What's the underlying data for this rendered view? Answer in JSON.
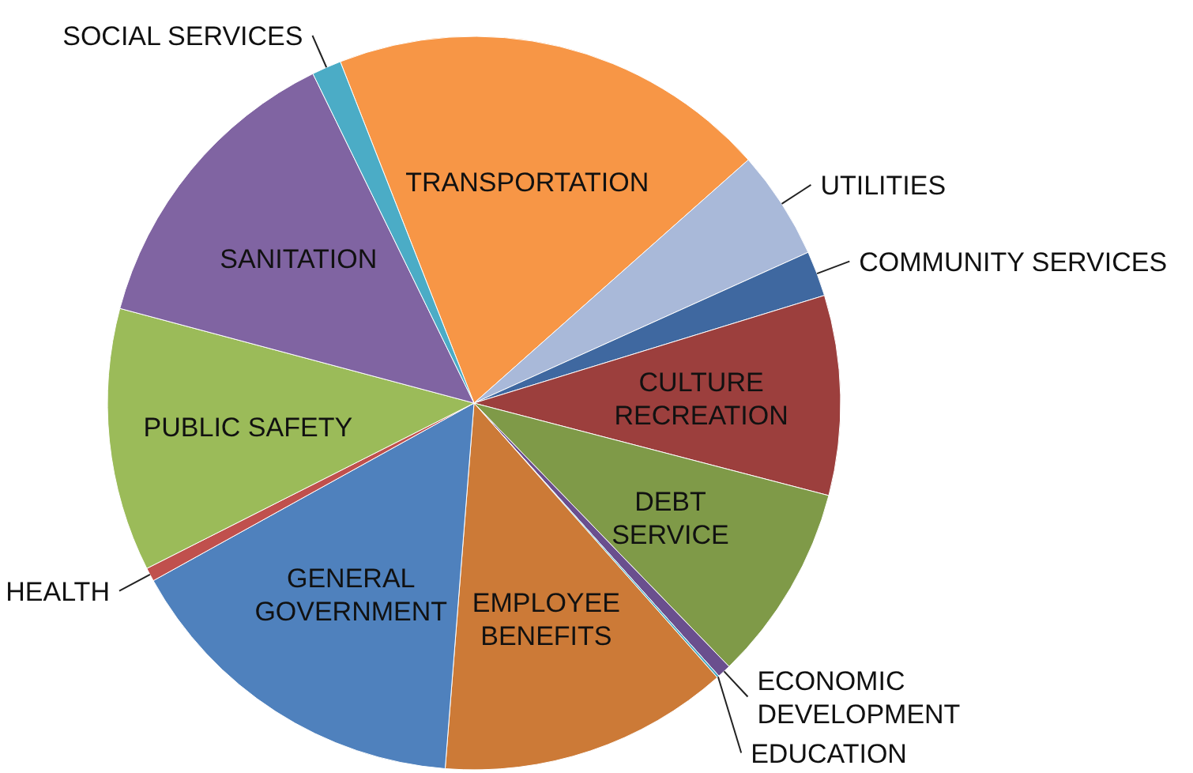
{
  "chart_data": {
    "type": "pie",
    "categories": [
      "TRANSPORTATION",
      "UTILITIES",
      "COMMUNITY SERVICES",
      "CULTURE\nRECREATION",
      "DEBT\nSERVICE",
      "ECONOMIC\nDEVELOPMENT",
      "EDUCATION",
      "EMPLOYEE\nBENEFITS",
      "GENERAL\nGOVERNMENT",
      "HEALTH",
      "PUBLIC SAFETY",
      "SANITATION",
      "SOCIAL SERVICES"
    ],
    "values": [
      19.4,
      4.8,
      2.0,
      8.8,
      8.7,
      0.6,
      0.1,
      12.8,
      15.7,
      0.6,
      11.6,
      13.6,
      1.3
    ],
    "colors": [
      "#f79646",
      "#a9b9d9",
      "#3f68a0",
      "#9c3f3d",
      "#7f9a48",
      "#6a4f8e",
      "#4bacc6",
      "#cc7a37",
      "#4f81bd",
      "#c0504d",
      "#9bbb59",
      "#8064a2",
      "#4bacc6"
    ]
  }
}
